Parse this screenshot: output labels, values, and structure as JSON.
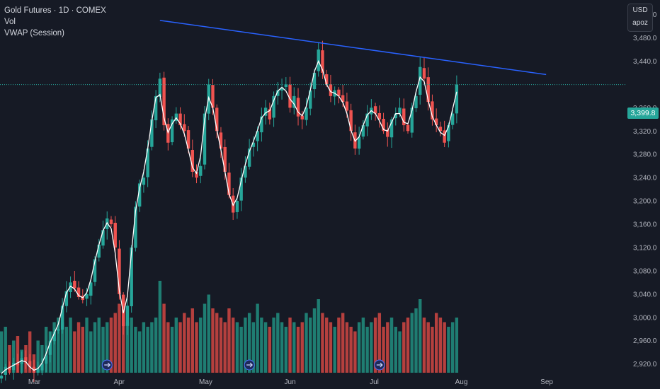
{
  "legend": {
    "title": "Gold Futures · 1D · COMEX",
    "vol": "Vol",
    "vwap": "VWAP (Session)"
  },
  "badge": {
    "currency": "USD",
    "scale": "apoz"
  },
  "last_price": {
    "label": "3,399.8",
    "value": 3399.8
  },
  "colors": {
    "background": "#161a25",
    "up": "#26a69a",
    "down": "#ef5350",
    "up_volume": "#1f7d72",
    "down_volume": "#b5403e",
    "vwap": "#ffffff",
    "trendline": "#2962ff",
    "price_line": "#26a69a"
  },
  "chart_data": {
    "type": "candlestick",
    "title": "Gold Futures · 1D · COMEX",
    "yaxis": {
      "ticks": [
        2920,
        2960,
        3000,
        3040,
        3080,
        3120,
        3160,
        3200,
        3240,
        3280,
        3320,
        3360,
        3440,
        3480,
        3520
      ],
      "tick_labels": [
        "2,920.0",
        "2,960.0",
        "3,000.0",
        "3,040.0",
        "3,080.0",
        "3,120.0",
        "3,160.0",
        "3,200.0",
        "3,240.0",
        "3,280.0",
        "3,320.0",
        "3,360.0",
        "3,440.0",
        "3,480.0",
        "3,520.0"
      ],
      "range": [
        2905,
        3545
      ]
    },
    "xaxis": {
      "labels": [
        "Mar",
        "Apr",
        "May",
        "Jun",
        "Jul",
        "Aug",
        "Sep"
      ],
      "label_bar_index": [
        8,
        29,
        50,
        71,
        92,
        113,
        134
      ]
    },
    "grid": false,
    "closes": [
      2900,
      2915,
      2910,
      2922,
      2918,
      2930,
      2925,
      2915,
      2905,
      2912,
      2920,
      2935,
      2960,
      2975,
      2980,
      3020,
      3045,
      3060,
      3050,
      3035,
      3030,
      3040,
      3060,
      3100,
      3125,
      3150,
      3170,
      3160,
      3120,
      3040,
      2985,
      3020,
      3120,
      3190,
      3230,
      3240,
      3290,
      3340,
      3380,
      3410,
      3330,
      3300,
      3340,
      3350,
      3330,
      3320,
      3290,
      3250,
      3240,
      3260,
      3350,
      3400,
      3360,
      3320,
      3290,
      3250,
      3210,
      3180,
      3200,
      3240,
      3260,
      3290,
      3300,
      3320,
      3345,
      3360,
      3340,
      3380,
      3390,
      3395,
      3400,
      3360,
      3380,
      3345,
      3340,
      3360,
      3390,
      3420,
      3460,
      3420,
      3400,
      3380,
      3390,
      3380,
      3370,
      3355,
      3320,
      3290,
      3310,
      3330,
      3350,
      3360,
      3350,
      3340,
      3320,
      3310,
      3340,
      3350,
      3360,
      3330,
      3320,
      3360,
      3380,
      3430,
      3410,
      3370,
      3340,
      3330,
      3320,
      3300,
      3330,
      3350,
      3399.8
    ],
    "volume_relative": [
      0.45,
      0.5,
      0.3,
      0.35,
      0.4,
      0.25,
      0.3,
      0.45,
      0.2,
      0.35,
      0.3,
      0.5,
      0.45,
      0.55,
      0.6,
      0.55,
      0.5,
      0.6,
      0.45,
      0.55,
      0.5,
      0.6,
      0.45,
      0.55,
      0.6,
      0.5,
      0.55,
      0.6,
      0.65,
      0.75,
      0.8,
      0.55,
      0.6,
      0.5,
      0.45,
      0.55,
      0.5,
      0.55,
      0.6,
      1.0,
      0.75,
      0.55,
      0.5,
      0.6,
      0.55,
      0.65,
      0.6,
      0.7,
      0.55,
      0.6,
      0.75,
      0.85,
      0.7,
      0.65,
      0.6,
      0.55,
      0.7,
      0.6,
      0.55,
      0.5,
      0.6,
      0.65,
      0.55,
      0.75,
      0.6,
      0.55,
      0.5,
      0.6,
      0.65,
      0.55,
      0.5,
      0.6,
      0.55,
      0.5,
      0.55,
      0.65,
      0.6,
      0.7,
      0.8,
      0.65,
      0.6,
      0.55,
      0.5,
      0.6,
      0.65,
      0.55,
      0.5,
      0.45,
      0.55,
      0.6,
      0.5,
      0.55,
      0.6,
      0.65,
      0.5,
      0.55,
      0.6,
      0.5,
      0.45,
      0.55,
      0.6,
      0.65,
      0.7,
      0.8,
      0.6,
      0.55,
      0.5,
      0.65,
      0.6,
      0.55,
      0.5,
      0.55,
      0.6
    ],
    "trendline": {
      "from_index": 39,
      "from_price": 3510,
      "to_index": 134,
      "to_price": 3417
    },
    "events_icon_at_index": [
      26,
      61,
      93
    ]
  }
}
